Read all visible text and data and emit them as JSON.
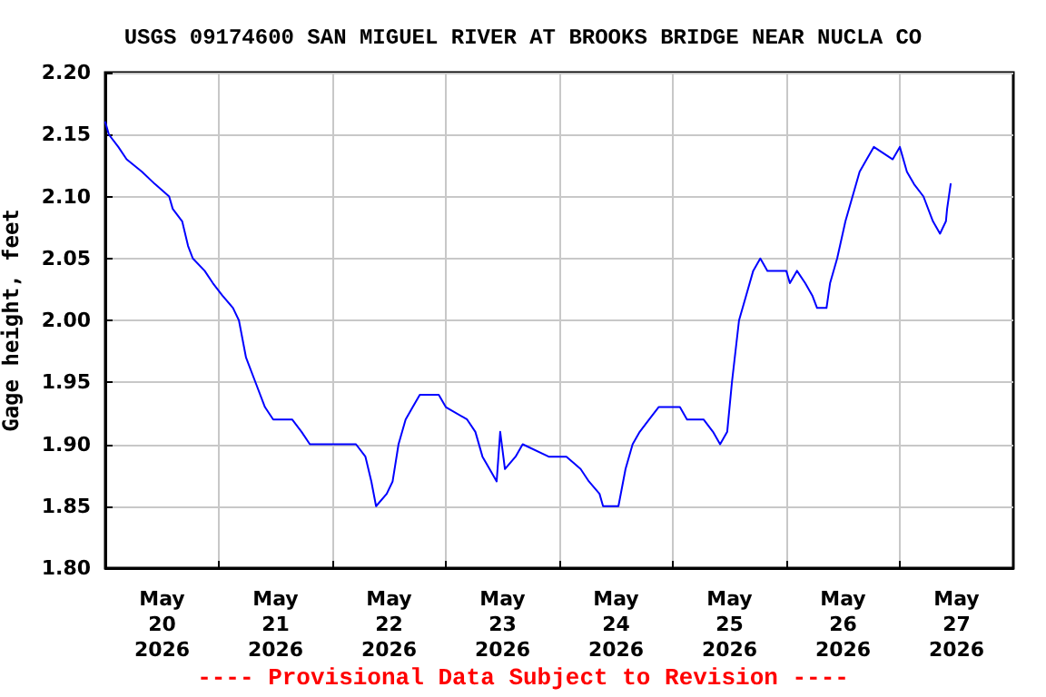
{
  "chart_data": {
    "type": "line",
    "title": "USGS 09174600 SAN MIGUEL RIVER AT BROOKS BRIDGE NEAR NUCLA CO",
    "ylabel": "Gage height, feet",
    "annotations": [
      "---- Provisional Data Subject to Revision ----"
    ],
    "x": [
      "2026-05-20T00:00",
      "2026-05-20T00:45",
      "2026-05-20T02:45",
      "2026-05-20T04:30",
      "2026-05-20T07:45",
      "2026-05-20T10:30",
      "2026-05-20T13:30",
      "2026-05-20T14:15",
      "2026-05-20T16:15",
      "2026-05-20T17:30",
      "2026-05-20T18:30",
      "2026-05-20T21:00",
      "2026-05-20T22:45",
      "2026-05-21T00:45",
      "2026-05-21T03:00",
      "2026-05-21T04:15",
      "2026-05-21T05:45",
      "2026-05-21T07:45",
      "2026-05-21T09:45",
      "2026-05-21T11:30",
      "2026-05-21T15:30",
      "2026-05-21T17:30",
      "2026-05-21T19:15",
      "2026-05-22T05:00",
      "2026-05-22T07:00",
      "2026-05-22T08:15",
      "2026-05-22T09:15",
      "2026-05-22T11:30",
      "2026-05-22T12:45",
      "2026-05-22T14:00",
      "2026-05-22T15:30",
      "2026-05-22T17:00",
      "2026-05-22T18:30",
      "2026-05-22T22:30",
      "2026-05-23T00:00",
      "2026-05-23T04:30",
      "2026-05-23T06:15",
      "2026-05-23T07:45",
      "2026-05-23T09:15",
      "2026-05-23T10:45",
      "2026-05-23T11:30",
      "2026-05-23T12:30",
      "2026-05-23T14:45",
      "2026-05-23T16:15",
      "2026-05-23T21:45",
      "2026-05-24T01:30",
      "2026-05-24T04:30",
      "2026-05-24T06:15",
      "2026-05-24T08:30",
      "2026-05-24T09:15",
      "2026-05-24T12:30",
      "2026-05-24T14:00",
      "2026-05-24T15:30",
      "2026-05-24T17:00",
      "2026-05-24T19:00",
      "2026-05-24T21:00",
      "2026-05-25T01:30",
      "2026-05-25T03:00",
      "2026-05-25T06:30",
      "2026-05-25T08:30",
      "2026-05-25T10:00",
      "2026-05-25T11:30",
      "2026-05-25T12:30",
      "2026-05-25T14:00",
      "2026-05-25T15:30",
      "2026-05-25T17:00",
      "2026-05-25T18:30",
      "2026-05-25T20:00",
      "2026-05-26T00:00",
      "2026-05-26T00:45",
      "2026-05-26T02:15",
      "2026-05-26T04:00",
      "2026-05-26T05:30",
      "2026-05-26T06:30",
      "2026-05-26T08:30",
      "2026-05-26T09:15",
      "2026-05-26T10:45",
      "2026-05-26T12:30",
      "2026-05-26T14:00",
      "2026-05-26T15:30",
      "2026-05-26T17:00",
      "2026-05-26T18:30",
      "2026-05-26T22:30",
      "2026-05-27T00:00",
      "2026-05-27T01:30",
      "2026-05-27T03:00",
      "2026-05-27T05:00",
      "2026-05-27T07:00",
      "2026-05-27T08:30",
      "2026-05-27T09:45",
      "2026-05-27T10:00",
      "2026-05-27T10:45"
    ],
    "series": [
      {
        "color": "#0000ff",
        "values": [
          2.16,
          2.15,
          2.14,
          2.13,
          2.12,
          2.11,
          2.1,
          2.09,
          2.08,
          2.06,
          2.05,
          2.04,
          2.03,
          2.02,
          2.01,
          2.0,
          1.97,
          1.95,
          1.93,
          1.92,
          1.92,
          1.91,
          1.9,
          1.9,
          1.89,
          1.87,
          1.85,
          1.86,
          1.87,
          1.9,
          1.92,
          1.93,
          1.94,
          1.94,
          1.93,
          1.92,
          1.91,
          1.89,
          1.88,
          1.87,
          1.91,
          1.88,
          1.89,
          1.9,
          1.89,
          1.89,
          1.88,
          1.87,
          1.86,
          1.85,
          1.85,
          1.88,
          1.9,
          1.91,
          1.92,
          1.93,
          1.93,
          1.92,
          1.92,
          1.91,
          1.9,
          1.91,
          1.95,
          2.0,
          2.02,
          2.04,
          2.05,
          2.04,
          2.04,
          2.03,
          2.04,
          2.03,
          2.02,
          2.01,
          2.01,
          2.03,
          2.05,
          2.08,
          2.1,
          2.12,
          2.13,
          2.14,
          2.13,
          2.14,
          2.12,
          2.11,
          2.1,
          2.08,
          2.07,
          2.08,
          2.09,
          2.11
        ]
      }
    ],
    "xlim": [
      "2026-05-20T00:00",
      "2026-05-28T00:00"
    ],
    "xticks": [
      {
        "value": "2026-05-20T12:00",
        "label": "May\n20\n2026"
      },
      {
        "value": "2026-05-21T00:00",
        "label": null
      },
      {
        "value": "2026-05-21T12:00",
        "label": "May\n21\n2026"
      },
      {
        "value": "2026-05-22T00:00",
        "label": null
      },
      {
        "value": "2026-05-22T12:00",
        "label": "May\n22\n2026"
      },
      {
        "value": "2026-05-23T00:00",
        "label": null
      },
      {
        "value": "2026-05-23T12:00",
        "label": "May\n23\n2026"
      },
      {
        "value": "2026-05-24T00:00",
        "label": null
      },
      {
        "value": "2026-05-24T12:00",
        "label": "May\n24\n2026"
      },
      {
        "value": "2026-05-25T00:00",
        "label": null
      },
      {
        "value": "2026-05-25T12:00",
        "label": "May\n25\n2026"
      },
      {
        "value": "2026-05-26T00:00",
        "label": null
      },
      {
        "value": "2026-05-26T12:00",
        "label": "May\n26\n2026"
      },
      {
        "value": "2026-05-27T00:00",
        "label": null
      },
      {
        "value": "2026-05-27T12:00",
        "label": "May\n27\n2026"
      }
    ],
    "ylim": [
      1.8,
      2.2
    ],
    "yticks": [
      {
        "value": 1.8,
        "label": "1.80"
      },
      {
        "value": 1.85,
        "label": "1.85"
      },
      {
        "value": 1.9,
        "label": "1.90"
      },
      {
        "value": 1.95,
        "label": "1.95"
      },
      {
        "value": 2.0,
        "label": "2.00"
      },
      {
        "value": 2.05,
        "label": "2.05"
      },
      {
        "value": 2.1,
        "label": "2.10"
      },
      {
        "value": 2.15,
        "label": "2.15"
      },
      {
        "value": 2.2,
        "label": "2.20"
      }
    ],
    "grid": true,
    "marker": "none",
    "line_style": "solid"
  }
}
